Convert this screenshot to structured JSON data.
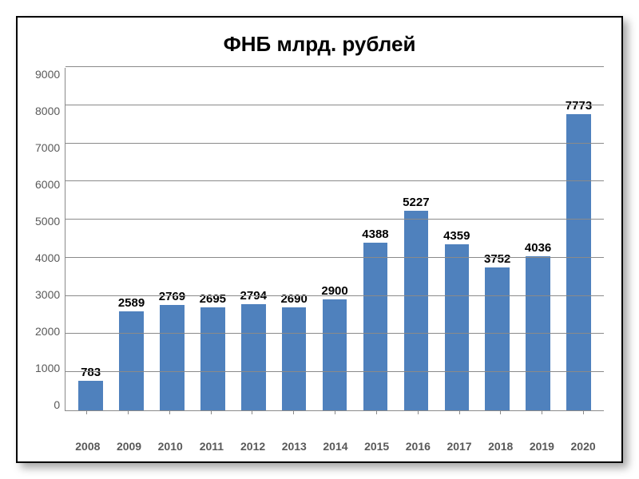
{
  "chart": {
    "type": "bar",
    "title": "ФНБ млрд. рублей",
    "title_fontsize": 26,
    "categories": [
      "2008",
      "2009",
      "2010",
      "2011",
      "2012",
      "2013",
      "2014",
      "2015",
      "2016",
      "2017",
      "2018",
      "2019",
      "2020"
    ],
    "values": [
      783,
      2589,
      2769,
      2695,
      2794,
      2690,
      2900,
      4388,
      5227,
      4359,
      3752,
      4036,
      7773
    ],
    "bar_color": "#4f81bd",
    "ylim": [
      0,
      9000
    ],
    "ytick_step": 1000,
    "yticks": [
      "9000",
      "8000",
      "7000",
      "6000",
      "5000",
      "4000",
      "3000",
      "2000",
      "1000",
      "0"
    ],
    "grid_color": "#8a8a8a",
    "background_color": "#ffffff",
    "label_color": "#595959",
    "value_label_color": "#000000",
    "label_fontsize": 14,
    "bar_width": 0.6
  }
}
